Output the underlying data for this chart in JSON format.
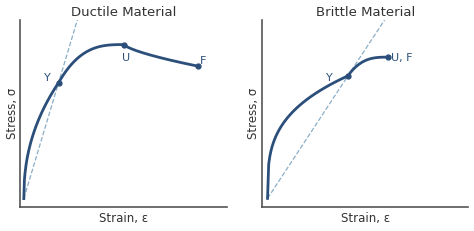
{
  "title_ductile": "Ductile Material",
  "title_brittle": "Brittle Material",
  "xlabel": "Strain, ε",
  "ylabel": "Stress, σ",
  "curve_color": "#2B4F7A",
  "dashed_color": "#8AAEC8",
  "point_color": "#2B4F7A",
  "background_color": "#ffffff",
  "title_fontsize": 9.5,
  "label_fontsize": 8.5,
  "point_fontsize": 8,
  "fig_width": 4.74,
  "fig_height": 2.31,
  "spine_color": "#555555",
  "text_color": "#333333"
}
